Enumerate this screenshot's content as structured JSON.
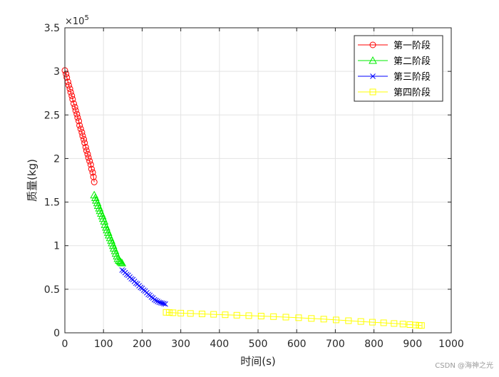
{
  "chart_data": {
    "type": "line",
    "title": "",
    "xlabel": "时间(s)",
    "ylabel": "质量(kg)",
    "xlim": [
      0,
      1000
    ],
    "ylim": [
      0,
      350000
    ],
    "x_ticks": [
      "0",
      "100",
      "200",
      "300",
      "400",
      "500",
      "600",
      "700",
      "800",
      "900",
      "1000"
    ],
    "y_ticks": [
      "0",
      "0.5",
      "1",
      "1.5",
      "2",
      "2.5",
      "3",
      "3.5"
    ],
    "y_exponent_label": "×10",
    "y_exponent_power": "5",
    "grid": true,
    "legend_position": "top-right",
    "series": [
      {
        "name": "第一阶段",
        "color": "#ff0000",
        "marker": "circle",
        "x": [
          0,
          3,
          5,
          8,
          10,
          13,
          15,
          18,
          20,
          23,
          26,
          28,
          31,
          33,
          36,
          38,
          41,
          44,
          46,
          49,
          51,
          54,
          56,
          59,
          61,
          64,
          67,
          69,
          72,
          74,
          76
        ],
        "y": [
          301000,
          297000,
          293000,
          288000,
          284000,
          280000,
          276000,
          272000,
          268000,
          263000,
          259000,
          255000,
          251000,
          247000,
          243000,
          238000,
          234000,
          230000,
          226000,
          222000,
          218000,
          213000,
          209000,
          205000,
          201000,
          197000,
          193000,
          188000,
          184000,
          179000,
          173000
        ]
      },
      {
        "name": "第二阶段",
        "color": "#00ee00",
        "marker": "triangle",
        "x": [
          76,
          79,
          81,
          84,
          86,
          89,
          91,
          94,
          97,
          99,
          102,
          104,
          107,
          109,
          112,
          114,
          117,
          120,
          122,
          125,
          127,
          130,
          132,
          135,
          137,
          140,
          143,
          145,
          148
        ],
        "y": [
          158000,
          155000,
          152000,
          149000,
          146000,
          143000,
          140000,
          137000,
          134000,
          131000,
          128000,
          124000,
          121000,
          118000,
          115000,
          112000,
          109000,
          106000,
          103000,
          100000,
          97000,
          94000,
          91000,
          88000,
          85000,
          83000,
          82000,
          81000,
          80000
        ]
      },
      {
        "name": "第三阶段",
        "color": "#0000ff",
        "marker": "x",
        "x": [
          148,
          152,
          156,
          160,
          164,
          168,
          172,
          176,
          180,
          184,
          188,
          192,
          196,
          200,
          204,
          208,
          212,
          216,
          220,
          224,
          228,
          232,
          236,
          240,
          244,
          248,
          252,
          256,
          260
        ],
        "y": [
          72000,
          71000,
          69000,
          67000,
          66000,
          64000,
          62000,
          61000,
          59000,
          57000,
          56000,
          54000,
          52000,
          51000,
          49000,
          48000,
          46000,
          44000,
          43000,
          41000,
          40000,
          38000,
          37000,
          36000,
          35000,
          34500,
          34000,
          33500,
          33000
        ]
      },
      {
        "name": "第四阶段",
        "color": "#ffff00",
        "marker": "square",
        "x": [
          262,
          270,
          280,
          300,
          325,
          355,
          385,
          415,
          445,
          476,
          508,
          540,
          572,
          605,
          638,
          670,
          702,
          734,
          766,
          796,
          825,
          852,
          875,
          893,
          907,
          917,
          923
        ],
        "y": [
          23500,
          23300,
          23000,
          22600,
          22200,
          21700,
          21200,
          20700,
          20200,
          19700,
          19200,
          18600,
          18000,
          17300,
          16500,
          15700,
          14800,
          13900,
          13000,
          12200,
          11500,
          10700,
          10000,
          9400,
          8900,
          8600,
          8400
        ]
      }
    ]
  },
  "watermark": "CSDN @海神之光"
}
